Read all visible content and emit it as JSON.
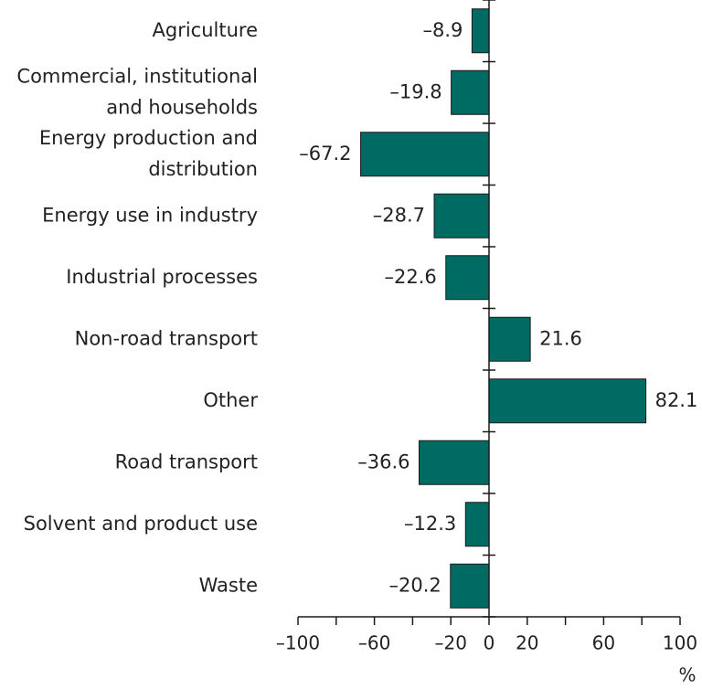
{
  "chart_data": {
    "type": "bar",
    "orientation": "horizontal",
    "categories": [
      [
        "Agriculture"
      ],
      [
        "Commercial, institutional",
        "and households"
      ],
      [
        "Energy production and",
        "distribution"
      ],
      [
        "Energy use in industry"
      ],
      [
        "Industrial processes"
      ],
      [
        "Non-road transport"
      ],
      [
        "Other"
      ],
      [
        "Road transport"
      ],
      [
        "Solvent and product use"
      ],
      [
        "Waste"
      ]
    ],
    "values": [
      -8.9,
      -19.8,
      -67.2,
      -28.7,
      -22.6,
      21.6,
      82.1,
      -36.6,
      -12.3,
      -20.2
    ],
    "value_labels": [
      "–8.9",
      "–19.8",
      "–67.2",
      "–28.7",
      "–22.6",
      "21.6",
      "82.1",
      "–36.6",
      "–12.3",
      "–20.2"
    ],
    "xlim": [
      -100,
      100
    ],
    "x_ticks": [
      -100,
      -80,
      -60,
      -40,
      -20,
      0,
      20,
      40,
      60,
      80,
      100
    ],
    "x_tick_labels": [
      {
        "value": -100,
        "label": "–100"
      },
      {
        "value": -60,
        "label": "–60"
      },
      {
        "value": -20,
        "label": "–20"
      },
      {
        "value": 0,
        "label": "0"
      },
      {
        "value": 20,
        "label": "20"
      },
      {
        "value": 60,
        "label": "60"
      },
      {
        "value": 100,
        "label": "100"
      }
    ],
    "unit_label": "%",
    "bar_color": "#006b62",
    "grid": false,
    "legend": "none"
  }
}
